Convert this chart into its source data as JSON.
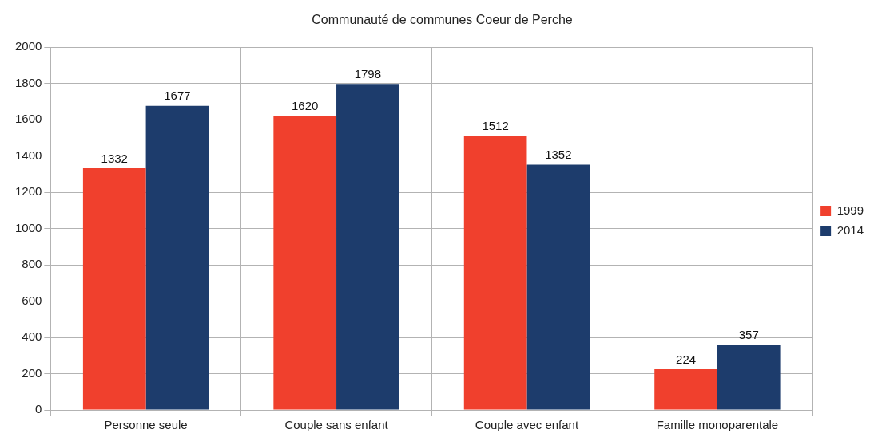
{
  "chart_data": {
    "type": "bar",
    "title": "Communauté de communes Coeur de Perche",
    "categories": [
      "Personne seule",
      "Couple sans enfant",
      "Couple avec enfant",
      "Famille monoparentale"
    ],
    "series": [
      {
        "name": "1999",
        "color": "#f0402d",
        "values": [
          1332,
          1620,
          1512,
          224
        ]
      },
      {
        "name": "2014",
        "color": "#1d3c6c",
        "values": [
          1677,
          1798,
          1352,
          357
        ]
      }
    ],
    "ylim": [
      0,
      2000
    ],
    "yticks": [
      0,
      200,
      400,
      600,
      800,
      1000,
      1200,
      1400,
      1600,
      1800,
      2000
    ],
    "grid": true,
    "legend": "right",
    "data_labels": true
  }
}
